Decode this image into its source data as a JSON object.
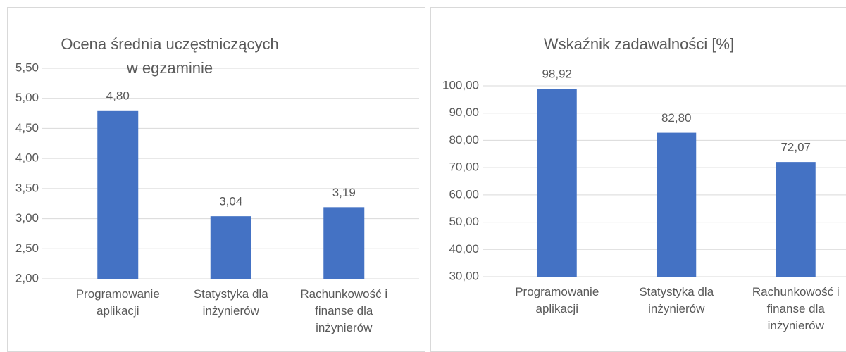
{
  "chart_data": [
    {
      "type": "bar",
      "title": "Ocena średnia uczęstniczących w egzaminie",
      "categories": [
        "Programowanie aplikacji",
        "Statystyka dla inżynierów",
        "Rachunkowość i finanse dla inżynierów"
      ],
      "values": [
        4.8,
        3.04,
        3.19
      ],
      "value_labels": [
        "4,80",
        "3,04",
        "3,19"
      ],
      "color": "#4472c4",
      "ylim": [
        2,
        5.5
      ],
      "yticks": [
        {
          "value": 2,
          "label": "2,00"
        },
        {
          "value": 2.5,
          "label": "2,50"
        },
        {
          "value": 3,
          "label": "3,00"
        },
        {
          "value": 3.5,
          "label": "3,50"
        },
        {
          "value": 4,
          "label": "4,00"
        },
        {
          "value": 4.5,
          "label": "4,50"
        },
        {
          "value": 5,
          "label": "5,00"
        },
        {
          "value": 5.5,
          "label": "5,50"
        }
      ],
      "grid": true
    },
    {
      "type": "bar",
      "title": "Wskaźnik zadawalności [%]",
      "categories": [
        "Programowanie aplikacji",
        "Statystyka dla inżynierów",
        "Rachunkowość i finanse dla inżynierów"
      ],
      "values": [
        98.92,
        82.8,
        72.07
      ],
      "value_labels": [
        "98,92",
        "82,80",
        "72,07"
      ],
      "color": "#4472c4",
      "ylim": [
        30,
        100
      ],
      "yticks": [
        {
          "value": 30,
          "label": "30,00"
        },
        {
          "value": 40,
          "label": "40,00"
        },
        {
          "value": 50,
          "label": "50,00"
        },
        {
          "value": 60,
          "label": "60,00"
        },
        {
          "value": 70,
          "label": "70,00"
        },
        {
          "value": 80,
          "label": "80,00"
        },
        {
          "value": 90,
          "label": "90,00"
        },
        {
          "value": 100,
          "label": "100,00"
        }
      ],
      "grid": true
    }
  ]
}
